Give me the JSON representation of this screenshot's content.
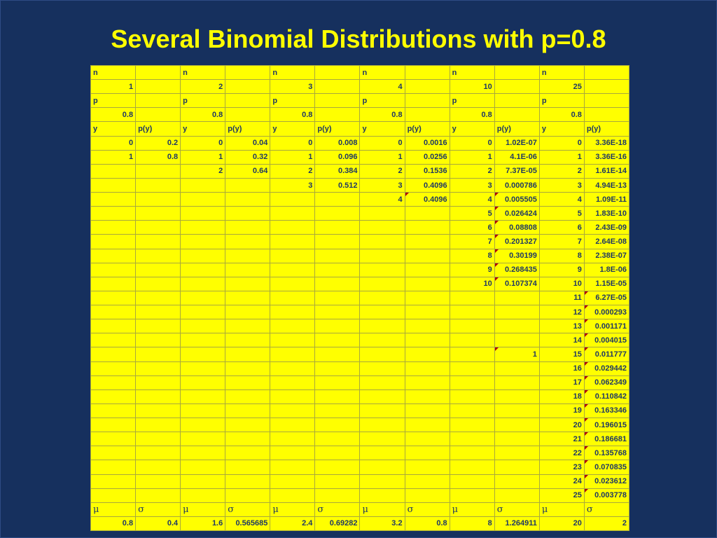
{
  "slide": {
    "title": "Several Binomial Distributions with p=0.8"
  },
  "colors": {
    "background": "#16305E",
    "title_text": "#FFFF00",
    "cell_background": "#FFFF00",
    "cell_text": "#1F3864",
    "grid_line": "#A9A93C",
    "comment_mark": "#B00000"
  },
  "labels": {
    "n": "n",
    "p": "p",
    "y": "y",
    "py": "p(y)",
    "mu": "μ",
    "sigma": "σ"
  },
  "chart_data": {
    "type": "table",
    "title": "Several Binomial Distributions with p=0.8",
    "columns_per_group": [
      "y",
      "p(y)"
    ],
    "num_data_rows": 26,
    "groups": [
      {
        "n": "1",
        "p": "0.8",
        "y": [
          "0",
          "1"
        ],
        "py": [
          "0.2",
          "0.8"
        ],
        "mu": "0.8",
        "sigma": "0.4",
        "comment_marks": []
      },
      {
        "n": "2",
        "p": "0.8",
        "y": [
          "0",
          "1",
          "2"
        ],
        "py": [
          "0.04",
          "0.32",
          "0.64"
        ],
        "mu": "1.6",
        "sigma": "0.565685",
        "comment_marks": []
      },
      {
        "n": "3",
        "p": "0.8",
        "y": [
          "0",
          "1",
          "2",
          "3"
        ],
        "py": [
          "0.008",
          "0.096",
          "0.384",
          "0.512"
        ],
        "mu": "2.4",
        "sigma": "0.69282",
        "comment_marks": []
      },
      {
        "n": "4",
        "p": "0.8",
        "y": [
          "0",
          "1",
          "2",
          "3",
          "4"
        ],
        "py": [
          "0.0016",
          "0.0256",
          "0.1536",
          "0.4096",
          "0.4096"
        ],
        "mu": "3.2",
        "sigma": "0.8",
        "comment_marks": [
          4
        ]
      },
      {
        "n": "10",
        "p": "0.8",
        "y": [
          "0",
          "1",
          "2",
          "3",
          "4",
          "5",
          "6",
          "7",
          "8",
          "9",
          "10"
        ],
        "py": [
          "1.02E-07",
          "4.1E-06",
          "7.37E-05",
          "0.000786",
          "0.005505",
          "0.026424",
          "0.08808",
          "0.201327",
          "0.30199",
          "0.268435",
          "0.107374"
        ],
        "sum_cell": {
          "row": 15,
          "value": "1",
          "mark": true
        },
        "mu": "8",
        "sigma": "1.264911",
        "comment_marks": [
          4,
          5,
          6,
          7,
          8,
          9,
          10
        ]
      },
      {
        "n": "25",
        "p": "0.8",
        "y": [
          "0",
          "1",
          "2",
          "3",
          "4",
          "5",
          "6",
          "7",
          "8",
          "9",
          "10",
          "11",
          "12",
          "13",
          "14",
          "15",
          "16",
          "17",
          "18",
          "19",
          "20",
          "21",
          "22",
          "23",
          "24",
          "25"
        ],
        "py": [
          "3.36E-18",
          "3.36E-16",
          "1.61E-14",
          "4.94E-13",
          "1.09E-11",
          "1.83E-10",
          "2.43E-09",
          "2.64E-08",
          "2.38E-07",
          "1.8E-06",
          "1.15E-05",
          "6.27E-05",
          "0.000293",
          "0.001171",
          "0.004015",
          "0.011777",
          "0.029442",
          "0.062349",
          "0.110842",
          "0.163346",
          "0.196015",
          "0.186681",
          "0.135768",
          "0.070835",
          "0.023612",
          "0.003778"
        ],
        "mu": "20",
        "sigma": "2",
        "comment_marks": [
          11,
          12,
          13,
          14,
          15,
          16,
          17,
          18,
          19,
          20,
          21,
          22,
          23,
          24,
          25
        ]
      }
    ]
  }
}
